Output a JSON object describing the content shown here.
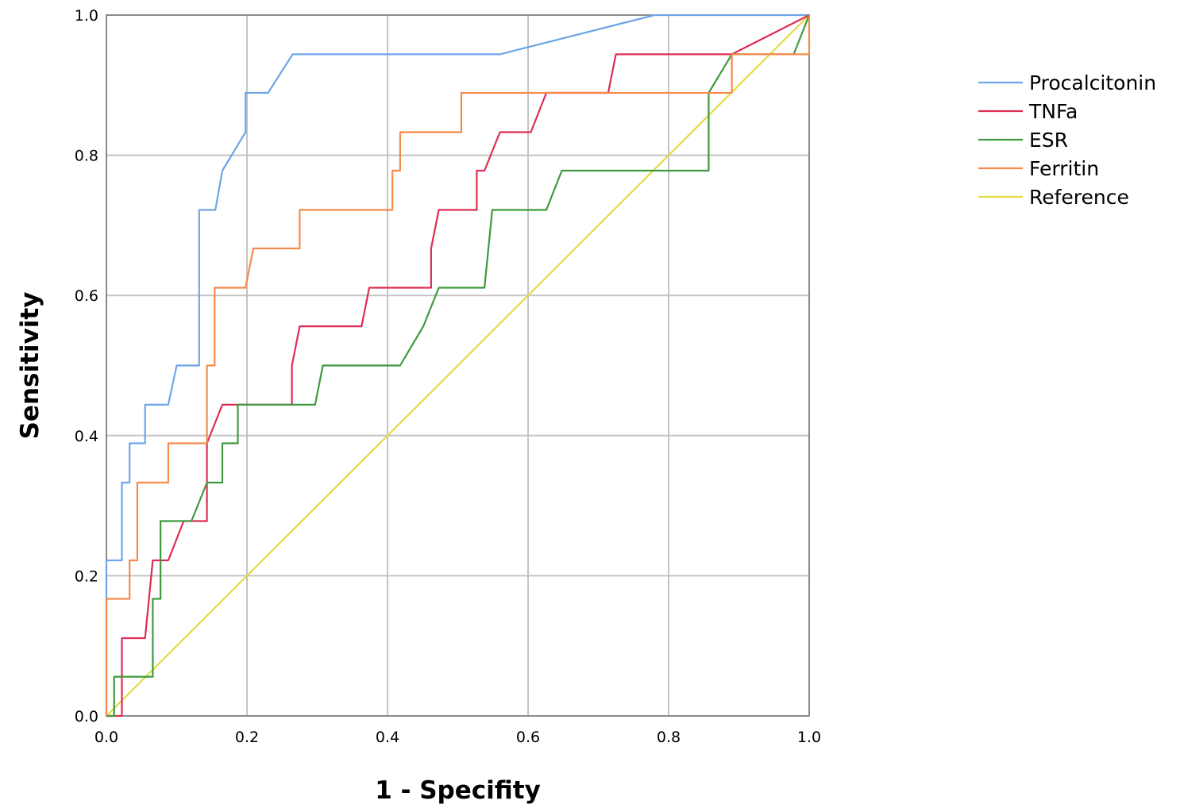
{
  "chart_data": {
    "type": "line",
    "title": "",
    "xlabel": "1 - Specifity",
    "ylabel": "Sensitivity",
    "xlim": [
      0,
      1
    ],
    "ylim": [
      0,
      1
    ],
    "xticks": [
      0,
      0.2,
      0.4,
      0.6,
      0.8,
      1
    ],
    "yticks": [
      0,
      0.2,
      0.4,
      0.6,
      0.8,
      1
    ],
    "xtick_labels": [
      "0.0",
      "0.2",
      "0.4",
      "0.6",
      "0.8",
      "1.0"
    ],
    "ytick_labels": [
      "0.0",
      "0.2",
      "0.4",
      "0.6",
      "0.8",
      "1.0"
    ],
    "grid": true,
    "legend_position": "top-right, outside plot",
    "series": [
      {
        "name": "Procalcitonin",
        "color": "#6fa5e8",
        "x": [
          0,
          0,
          0.022,
          0.022,
          0.033,
          0.033,
          0.055,
          0.055,
          0.088,
          0.1,
          0.1,
          0.132,
          0.132,
          0.155,
          0.165,
          0.198,
          0.198,
          0.23,
          0.265,
          0.56,
          0.78,
          1
        ],
        "y": [
          0,
          0.222,
          0.222,
          0.333,
          0.333,
          0.389,
          0.389,
          0.444,
          0.444,
          0.5,
          0.5,
          0.5,
          0.722,
          0.722,
          0.778,
          0.833,
          0.889,
          0.889,
          0.944,
          0.944,
          1,
          1
        ]
      },
      {
        "name": "TNFa",
        "color": "#de2d54",
        "x": [
          0,
          0.022,
          0.022,
          0.055,
          0.066,
          0.088,
          0.11,
          0.132,
          0.143,
          0.143,
          0.165,
          0.264,
          0.264,
          0.275,
          0.363,
          0.374,
          0.462,
          0.462,
          0.473,
          0.527,
          0.527,
          0.538,
          0.56,
          0.604,
          0.626,
          0.714,
          0.725,
          0.89,
          0.89,
          1
        ],
        "y": [
          0,
          0,
          0.111,
          0.111,
          0.222,
          0.222,
          0.278,
          0.278,
          0.278,
          0.389,
          0.444,
          0.444,
          0.5,
          0.556,
          0.556,
          0.611,
          0.611,
          0.667,
          0.722,
          0.722,
          0.778,
          0.778,
          0.833,
          0.833,
          0.889,
          0.889,
          0.944,
          0.944,
          0.944,
          1
        ]
      },
      {
        "name": "ESR",
        "color": "#3f9a3f",
        "x": [
          0,
          0.011,
          0.011,
          0.066,
          0.066,
          0.077,
          0.077,
          0.088,
          0.121,
          0.143,
          0.165,
          0.165,
          0.187,
          0.187,
          0.297,
          0.308,
          0.418,
          0.451,
          0.473,
          0.538,
          0.549,
          0.626,
          0.648,
          0.857,
          0.857,
          0.89,
          0.978,
          1
        ],
        "y": [
          0,
          0,
          0.056,
          0.056,
          0.167,
          0.167,
          0.278,
          0.278,
          0.278,
          0.333,
          0.333,
          0.389,
          0.389,
          0.444,
          0.444,
          0.5,
          0.5,
          0.556,
          0.611,
          0.611,
          0.722,
          0.722,
          0.778,
          0.778,
          0.889,
          0.944,
          0.944,
          1
        ]
      },
      {
        "name": "Ferritin",
        "color": "#f58a4c",
        "x": [
          0,
          0,
          0.033,
          0.033,
          0.044,
          0.044,
          0.088,
          0.088,
          0.143,
          0.143,
          0.154,
          0.154,
          0.198,
          0.209,
          0.275,
          0.275,
          0.407,
          0.407,
          0.418,
          0.418,
          0.505,
          0.505,
          0.89,
          0.89,
          1,
          1,
          1
        ],
        "y": [
          0,
          0.167,
          0.167,
          0.222,
          0.222,
          0.333,
          0.333,
          0.389,
          0.389,
          0.5,
          0.5,
          0.611,
          0.611,
          0.667,
          0.667,
          0.722,
          0.722,
          0.778,
          0.778,
          0.833,
          0.833,
          0.889,
          0.889,
          0.944,
          0.944,
          0.944,
          1
        ]
      },
      {
        "name": "Reference",
        "color": "#e2dc45",
        "x": [
          0,
          1
        ],
        "y": [
          0,
          1
        ]
      }
    ]
  }
}
